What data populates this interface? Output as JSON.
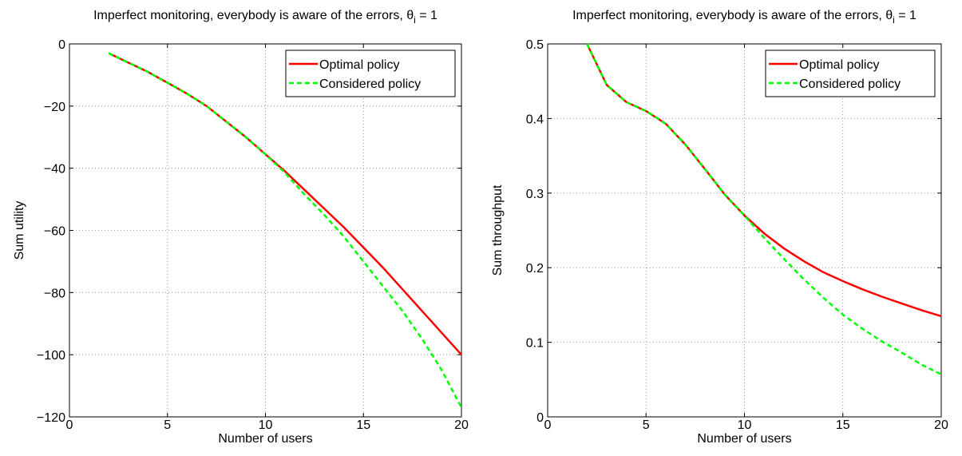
{
  "chart_data": [
    {
      "type": "line",
      "title": "Imperfect monitoring, everybody is aware of the errors, θ",
      "title_subscript": "i",
      "title_suffix": " = 1",
      "xlabel": "Number of users",
      "ylabel": "Sum utility",
      "x": [
        2,
        3,
        4,
        5,
        6,
        7,
        8,
        9,
        10,
        11,
        12,
        13,
        14,
        15,
        16,
        17,
        18,
        19,
        20
      ],
      "series": [
        {
          "name": "Optimal policy",
          "color": "#ff0000",
          "linestyle": "solid",
          "values": [
            -3,
            -6,
            -9,
            -12.5,
            -16,
            -20,
            -25,
            -30,
            -35.5,
            -41,
            -47,
            -53,
            -59,
            -65.5,
            -72,
            -79,
            -86,
            -93,
            -100
          ]
        },
        {
          "name": "Considered policy",
          "color": "#00ff00",
          "linestyle": "dashed",
          "values": [
            -3,
            -6,
            -9,
            -12.5,
            -16,
            -20,
            -25,
            -30,
            -35.5,
            -41.5,
            -48.5,
            -55,
            -62,
            -70,
            -78,
            -86,
            -95,
            -105,
            -117
          ]
        }
      ],
      "xlim": [
        0,
        20
      ],
      "xticks": [
        0,
        5,
        10,
        15,
        20
      ],
      "ylim": [
        -120,
        0
      ],
      "yticks": [
        {
          "value": -120,
          "label": "−120"
        },
        {
          "value": -100,
          "label": "−100"
        },
        {
          "value": -80,
          "label": "−80"
        },
        {
          "value": -60,
          "label": "−60"
        },
        {
          "value": -40,
          "label": "−40"
        },
        {
          "value": -20,
          "label": "−20"
        },
        0
      ],
      "grid": true,
      "legend": "upper right"
    },
    {
      "type": "line",
      "title": "Imperfect monitoring, everybody is aware of the errors, θ",
      "title_subscript": "i",
      "title_suffix": " = 1",
      "xlabel": "Number of users",
      "ylabel": "Sum throughput",
      "x": [
        2,
        3,
        4,
        5,
        6,
        7,
        8,
        9,
        10,
        11,
        12,
        13,
        14,
        15,
        16,
        17,
        18,
        19,
        20
      ],
      "series": [
        {
          "name": "Optimal policy",
          "color": "#ff0000",
          "linestyle": "solid",
          "values": [
            0.5,
            0.445,
            0.422,
            0.41,
            0.393,
            0.365,
            0.332,
            0.298,
            0.27,
            0.246,
            0.226,
            0.209,
            0.194,
            0.182,
            0.171,
            0.161,
            0.152,
            0.143,
            0.135
          ]
        },
        {
          "name": "Considered policy",
          "color": "#00ff00",
          "linestyle": "dashed",
          "values": [
            0.5,
            0.445,
            0.422,
            0.41,
            0.393,
            0.365,
            0.332,
            0.298,
            0.27,
            0.24,
            0.212,
            0.185,
            0.16,
            0.137,
            0.118,
            0.101,
            0.086,
            0.07,
            0.057
          ]
        }
      ],
      "xlim": [
        0,
        20
      ],
      "xticks": [
        0,
        5,
        10,
        15,
        20
      ],
      "ylim": [
        0,
        0.5
      ],
      "yticks": [
        0,
        0.1,
        0.2,
        0.3,
        0.4,
        0.5
      ],
      "grid": true,
      "legend": "upper right"
    }
  ]
}
